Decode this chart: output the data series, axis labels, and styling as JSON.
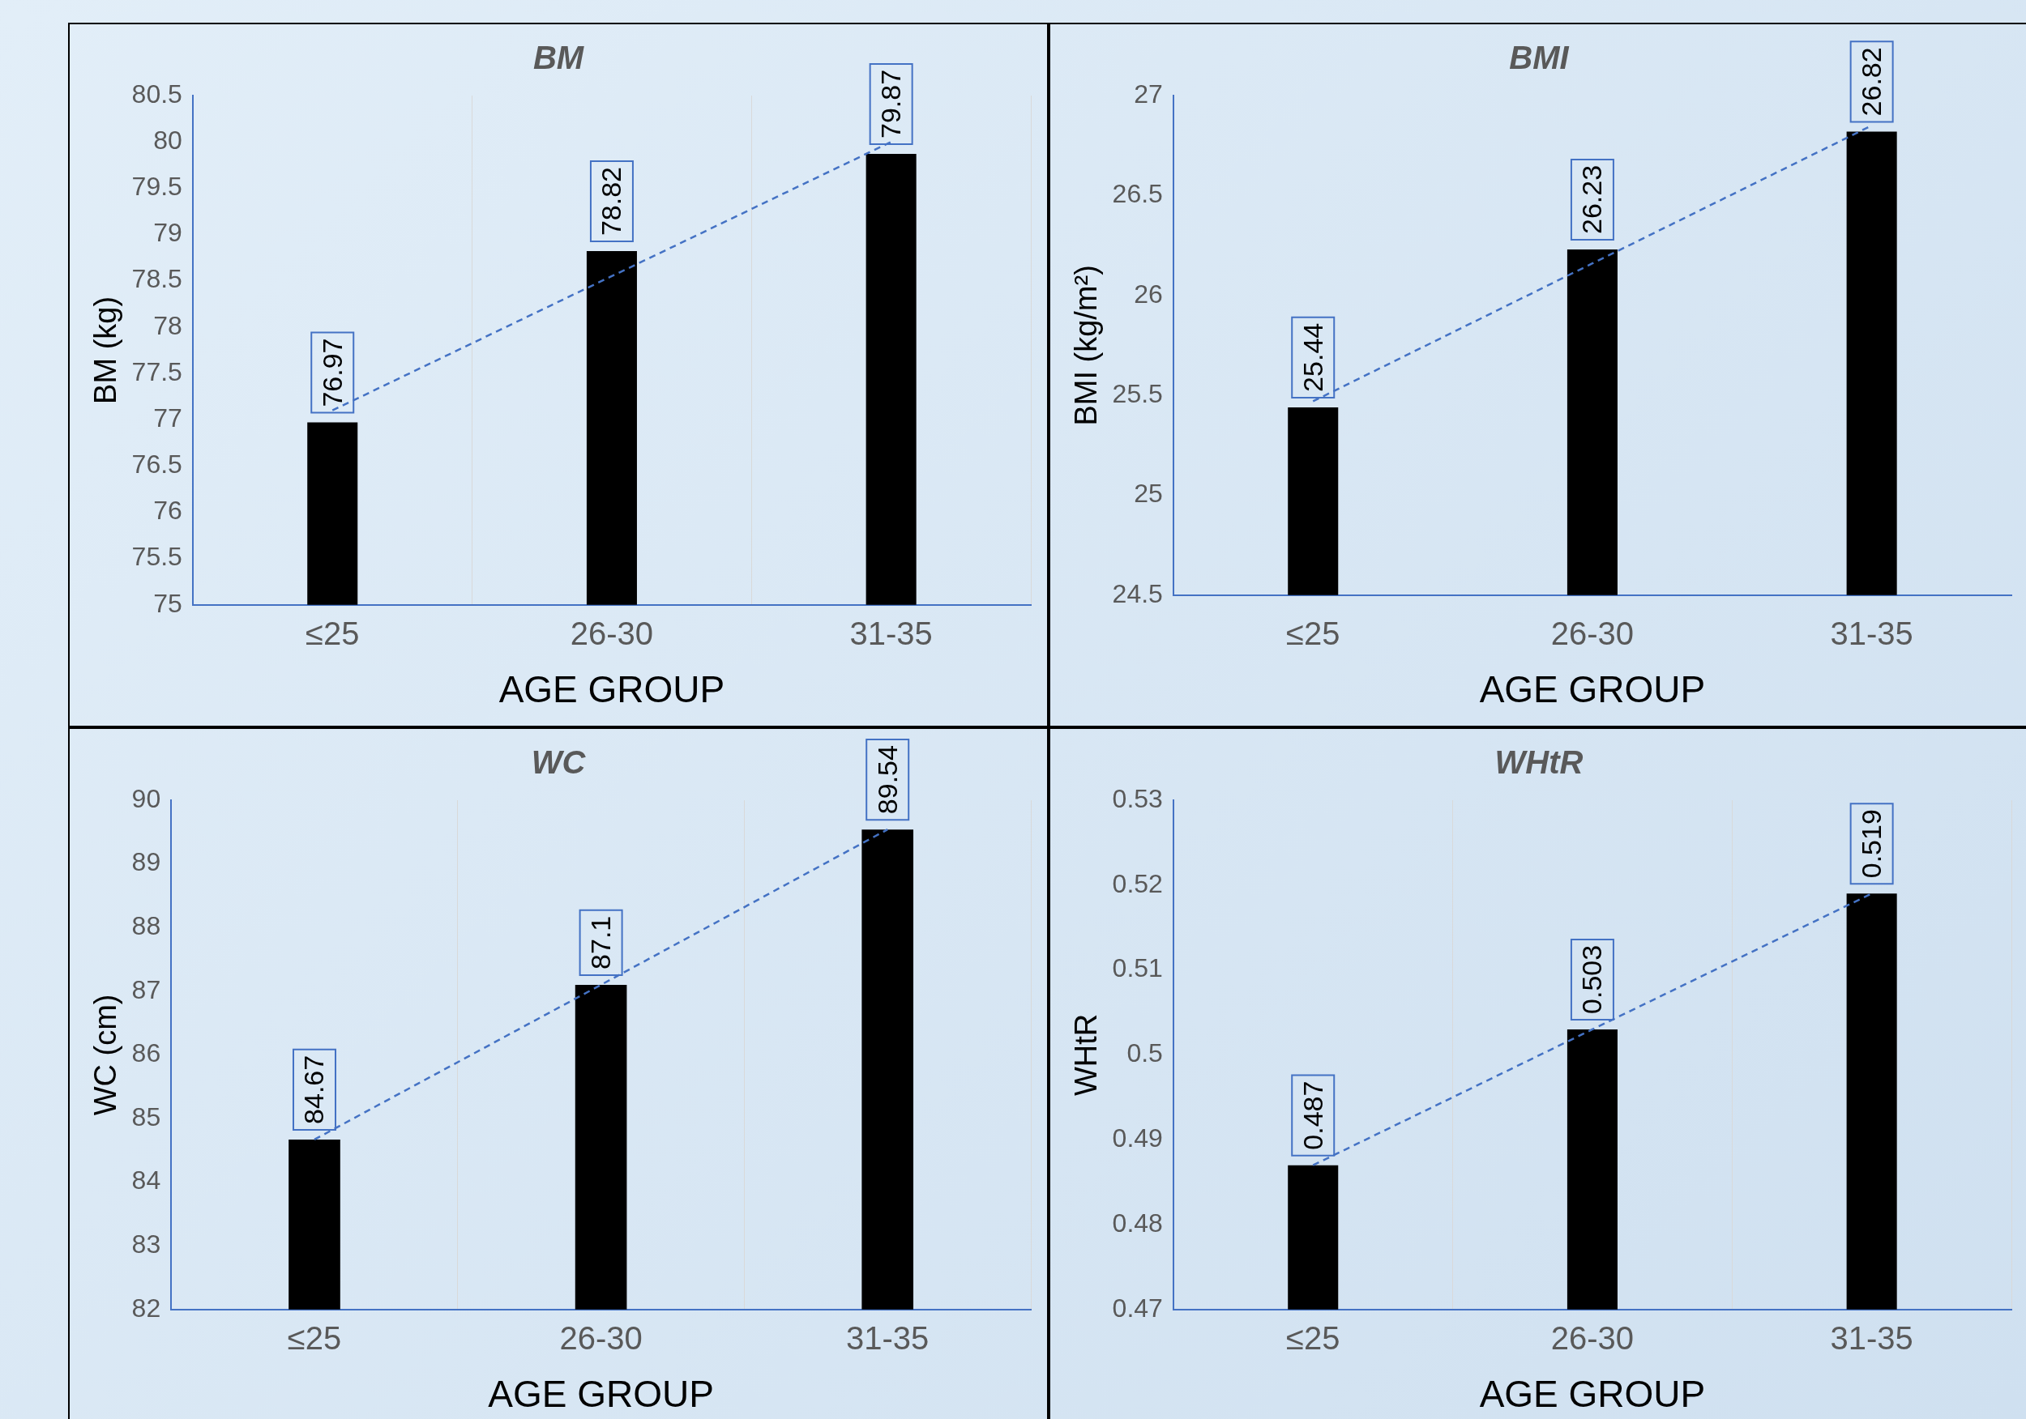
{
  "chart_data": [
    {
      "type": "bar",
      "title": "BM",
      "xlabel": "AGE GROUP",
      "ylabel": "BM (kg)",
      "categories": [
        "≤25",
        "26-30",
        "31-35"
      ],
      "ylim": [
        75,
        80.5
      ],
      "yticks": [
        75,
        75.5,
        76,
        76.5,
        77,
        77.5,
        78,
        78.5,
        79,
        79.5,
        80,
        80.5
      ],
      "grid": "x",
      "legend": false,
      "series": [
        {
          "color": "#000000",
          "values": [
            76.97,
            78.82,
            79.87
          ],
          "value_labels": [
            "76.97",
            "78.82",
            "79.87"
          ]
        },
        {
          "type": "line",
          "color": "#4472c4",
          "line_style": "dashed",
          "marker": "none",
          "values": [
            77.1,
            78.55,
            80.0
          ]
        }
      ]
    },
    {
      "type": "bar",
      "title": "BMI",
      "xlabel": "AGE GROUP",
      "ylabel": "BMI (kg/m²)",
      "categories": [
        "≤25",
        "26-30",
        "31-35"
      ],
      "ylim": [
        24.5,
        27
      ],
      "yticks": [
        24.5,
        25,
        25.5,
        26,
        26.5,
        27
      ],
      "grid": false,
      "legend": false,
      "series": [
        {
          "color": "#000000",
          "values": [
            25.44,
            26.23,
            26.82
          ],
          "value_labels": [
            "25.44",
            "26.23",
            "26.82"
          ]
        },
        {
          "type": "line",
          "color": "#4472c4",
          "line_style": "dashed",
          "marker": "none",
          "values": [
            25.47,
            26.16,
            26.85
          ]
        }
      ]
    },
    {
      "type": "bar",
      "title": "WC",
      "xlabel": "AGE GROUP",
      "ylabel": "WC (cm)",
      "categories": [
        "≤25",
        "26-30",
        "31-35"
      ],
      "ylim": [
        82,
        90
      ],
      "yticks": [
        82,
        83,
        84,
        85,
        86,
        87,
        88,
        89,
        90
      ],
      "grid": "x",
      "legend": false,
      "series": [
        {
          "color": "#000000",
          "values": [
            84.67,
            87.1,
            89.54
          ],
          "value_labels": [
            "84.67",
            "87.1",
            "89.54"
          ]
        },
        {
          "type": "line",
          "color": "#4472c4",
          "line_style": "dashed",
          "marker": "none",
          "values": [
            84.67,
            87.1,
            89.54
          ]
        }
      ]
    },
    {
      "type": "bar",
      "title": "WHtR",
      "xlabel": "AGE GROUP",
      "ylabel": "WHtR",
      "categories": [
        "≤25",
        "26-30",
        "31-35"
      ],
      "ylim": [
        0.47,
        0.53
      ],
      "yticks": [
        0.47,
        0.48,
        0.49,
        0.5,
        0.51,
        0.52,
        0.53
      ],
      "grid": "x",
      "legend": false,
      "series": [
        {
          "color": "#000000",
          "values": [
            0.487,
            0.503,
            0.519
          ],
          "value_labels": [
            "0.487",
            "0.503",
            "0.519"
          ]
        },
        {
          "type": "line",
          "color": "#4472c4",
          "line_style": "dashed",
          "marker": "none",
          "values": [
            0.487,
            0.503,
            0.519
          ]
        }
      ]
    }
  ]
}
